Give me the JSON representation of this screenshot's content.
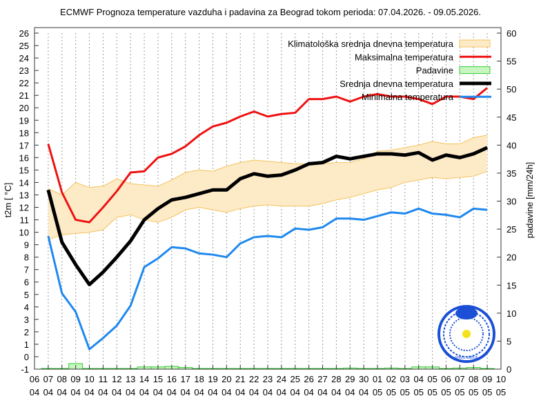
{
  "chart_data": {
    "type": "line",
    "title": "ECMWF Prognoza temperature vazduha i padavina za Beograd tokom perioda: 07.04.2026. - 09.05.2026.",
    "ylabel": "t2m [ °C]",
    "y2label": "padavine [mm/24h]",
    "ylim": [
      -1,
      26
    ],
    "y2lim": [
      0,
      60
    ],
    "grid": "vertical dotted",
    "legend_position": "top-right",
    "x_tick_labels": [
      [
        "06",
        "04"
      ],
      [
        "07",
        "04"
      ],
      [
        "08",
        "04"
      ],
      [
        "09",
        "04"
      ],
      [
        "10",
        "04"
      ],
      [
        "11",
        "04"
      ],
      [
        "12",
        "04"
      ],
      [
        "13",
        "04"
      ],
      [
        "14",
        "04"
      ],
      [
        "15",
        "04"
      ],
      [
        "16",
        "04"
      ],
      [
        "17",
        "04"
      ],
      [
        "18",
        "04"
      ],
      [
        "19",
        "04"
      ],
      [
        "20",
        "04"
      ],
      [
        "21",
        "04"
      ],
      [
        "22",
        "04"
      ],
      [
        "23",
        "04"
      ],
      [
        "24",
        "04"
      ],
      [
        "25",
        "04"
      ],
      [
        "26",
        "04"
      ],
      [
        "27",
        "04"
      ],
      [
        "28",
        "04"
      ],
      [
        "29",
        "04"
      ],
      [
        "30",
        "04"
      ],
      [
        "01",
        "05"
      ],
      [
        "02",
        "05"
      ],
      [
        "03",
        "05"
      ],
      [
        "04",
        "05"
      ],
      [
        "05",
        "05"
      ],
      [
        "06",
        "05"
      ],
      [
        "07",
        "05"
      ],
      [
        "08",
        "05"
      ],
      [
        "09",
        "05"
      ],
      [
        "10",
        "05"
      ]
    ],
    "x": [
      "07.04",
      "08.04",
      "09.04",
      "10.04",
      "11.04",
      "12.04",
      "13.04",
      "14.04",
      "15.04",
      "16.04",
      "17.04",
      "18.04",
      "19.04",
      "20.04",
      "21.04",
      "22.04",
      "23.04",
      "24.04",
      "25.04",
      "26.04",
      "27.04",
      "28.04",
      "29.04",
      "30.04",
      "01.05",
      "02.05",
      "03.05",
      "04.05",
      "05.05",
      "06.05",
      "07.05",
      "08.05",
      "09.05"
    ],
    "climatology_band": {
      "name": "Klimatološka srednja dnevna temperatura",
      "color": "#f5c15a",
      "fill": "#fdebc8",
      "upper": [
        13.5,
        13.0,
        14.0,
        13.6,
        13.7,
        14.3,
        13.9,
        13.8,
        13.7,
        14.2,
        14.8,
        15.0,
        14.9,
        15.3,
        15.6,
        15.8,
        15.7,
        15.6,
        15.5,
        15.5,
        15.5,
        15.6,
        15.6,
        15.9,
        16.5,
        16.6,
        16.8,
        17.0,
        17.3,
        17.1,
        17.1,
        17.6,
        17.8
      ],
      "lower": [
        9.4,
        9.8,
        9.9,
        10.0,
        10.2,
        11.2,
        11.4,
        11.0,
        10.8,
        11.2,
        11.8,
        12.0,
        11.8,
        11.6,
        11.9,
        12.1,
        12.2,
        12.1,
        12.1,
        12.1,
        12.3,
        12.6,
        12.8,
        13.1,
        13.4,
        13.6,
        14.0,
        14.2,
        14.4,
        14.3,
        14.4,
        14.5,
        14.9
      ]
    },
    "series": [
      {
        "name": "Maksimalna temperatura",
        "color": "#ee1111",
        "values": [
          17.1,
          13.2,
          11.0,
          10.8,
          12.0,
          13.3,
          14.8,
          14.9,
          16.0,
          16.3,
          16.9,
          17.8,
          18.5,
          18.8,
          19.3,
          19.7,
          19.3,
          19.5,
          19.6,
          20.7,
          20.7,
          20.9,
          20.5,
          20.9,
          21.1,
          20.9,
          20.9,
          20.7,
          20.3,
          20.9,
          20.9,
          20.7,
          21.6
        ]
      },
      {
        "name": "Srednja dnevna temperatura",
        "color": "#000000",
        "values": [
          13.4,
          9.2,
          7.4,
          5.8,
          6.8,
          8.0,
          9.3,
          11.0,
          11.9,
          12.6,
          12.8,
          13.1,
          13.4,
          13.4,
          14.3,
          14.7,
          14.5,
          14.6,
          15.0,
          15.5,
          15.6,
          16.1,
          15.9,
          16.1,
          16.3,
          16.3,
          16.2,
          16.4,
          15.8,
          16.2,
          16.0,
          16.3,
          16.8
        ]
      },
      {
        "name": "Minimalna temperatura",
        "color": "#1e88ee",
        "values": [
          9.7,
          5.1,
          3.6,
          0.6,
          1.5,
          2.5,
          4.1,
          7.2,
          7.9,
          8.8,
          8.7,
          8.3,
          8.2,
          8.0,
          9.1,
          9.6,
          9.7,
          9.6,
          10.3,
          10.2,
          10.4,
          11.1,
          11.1,
          11.0,
          11.3,
          11.6,
          11.5,
          11.9,
          11.5,
          11.4,
          11.2,
          11.9,
          11.8
        ]
      }
    ],
    "precipitation": {
      "name": "Padavine",
      "color": "#33cc33",
      "fill": "#c8f5c0",
      "values": [
        0,
        0,
        1.0,
        0.1,
        0,
        0.1,
        0,
        0.4,
        0.4,
        0.5,
        0.3,
        0,
        0,
        0,
        0,
        0,
        0,
        0,
        0,
        0,
        0,
        0,
        0.2,
        0,
        0,
        0.2,
        0,
        0.4,
        0.4,
        0,
        0.2,
        0.3,
        0.1
      ]
    },
    "legend_order": [
      "Klimatološka srednja dnevna temperatura",
      "Maksimalna temperatura",
      "Padavine",
      "Srednja dnevna temperatura",
      "Minimalna temperatura"
    ]
  },
  "logo": {
    "text": "RHMS SRBIJE",
    "color": "#1a4fd6"
  }
}
